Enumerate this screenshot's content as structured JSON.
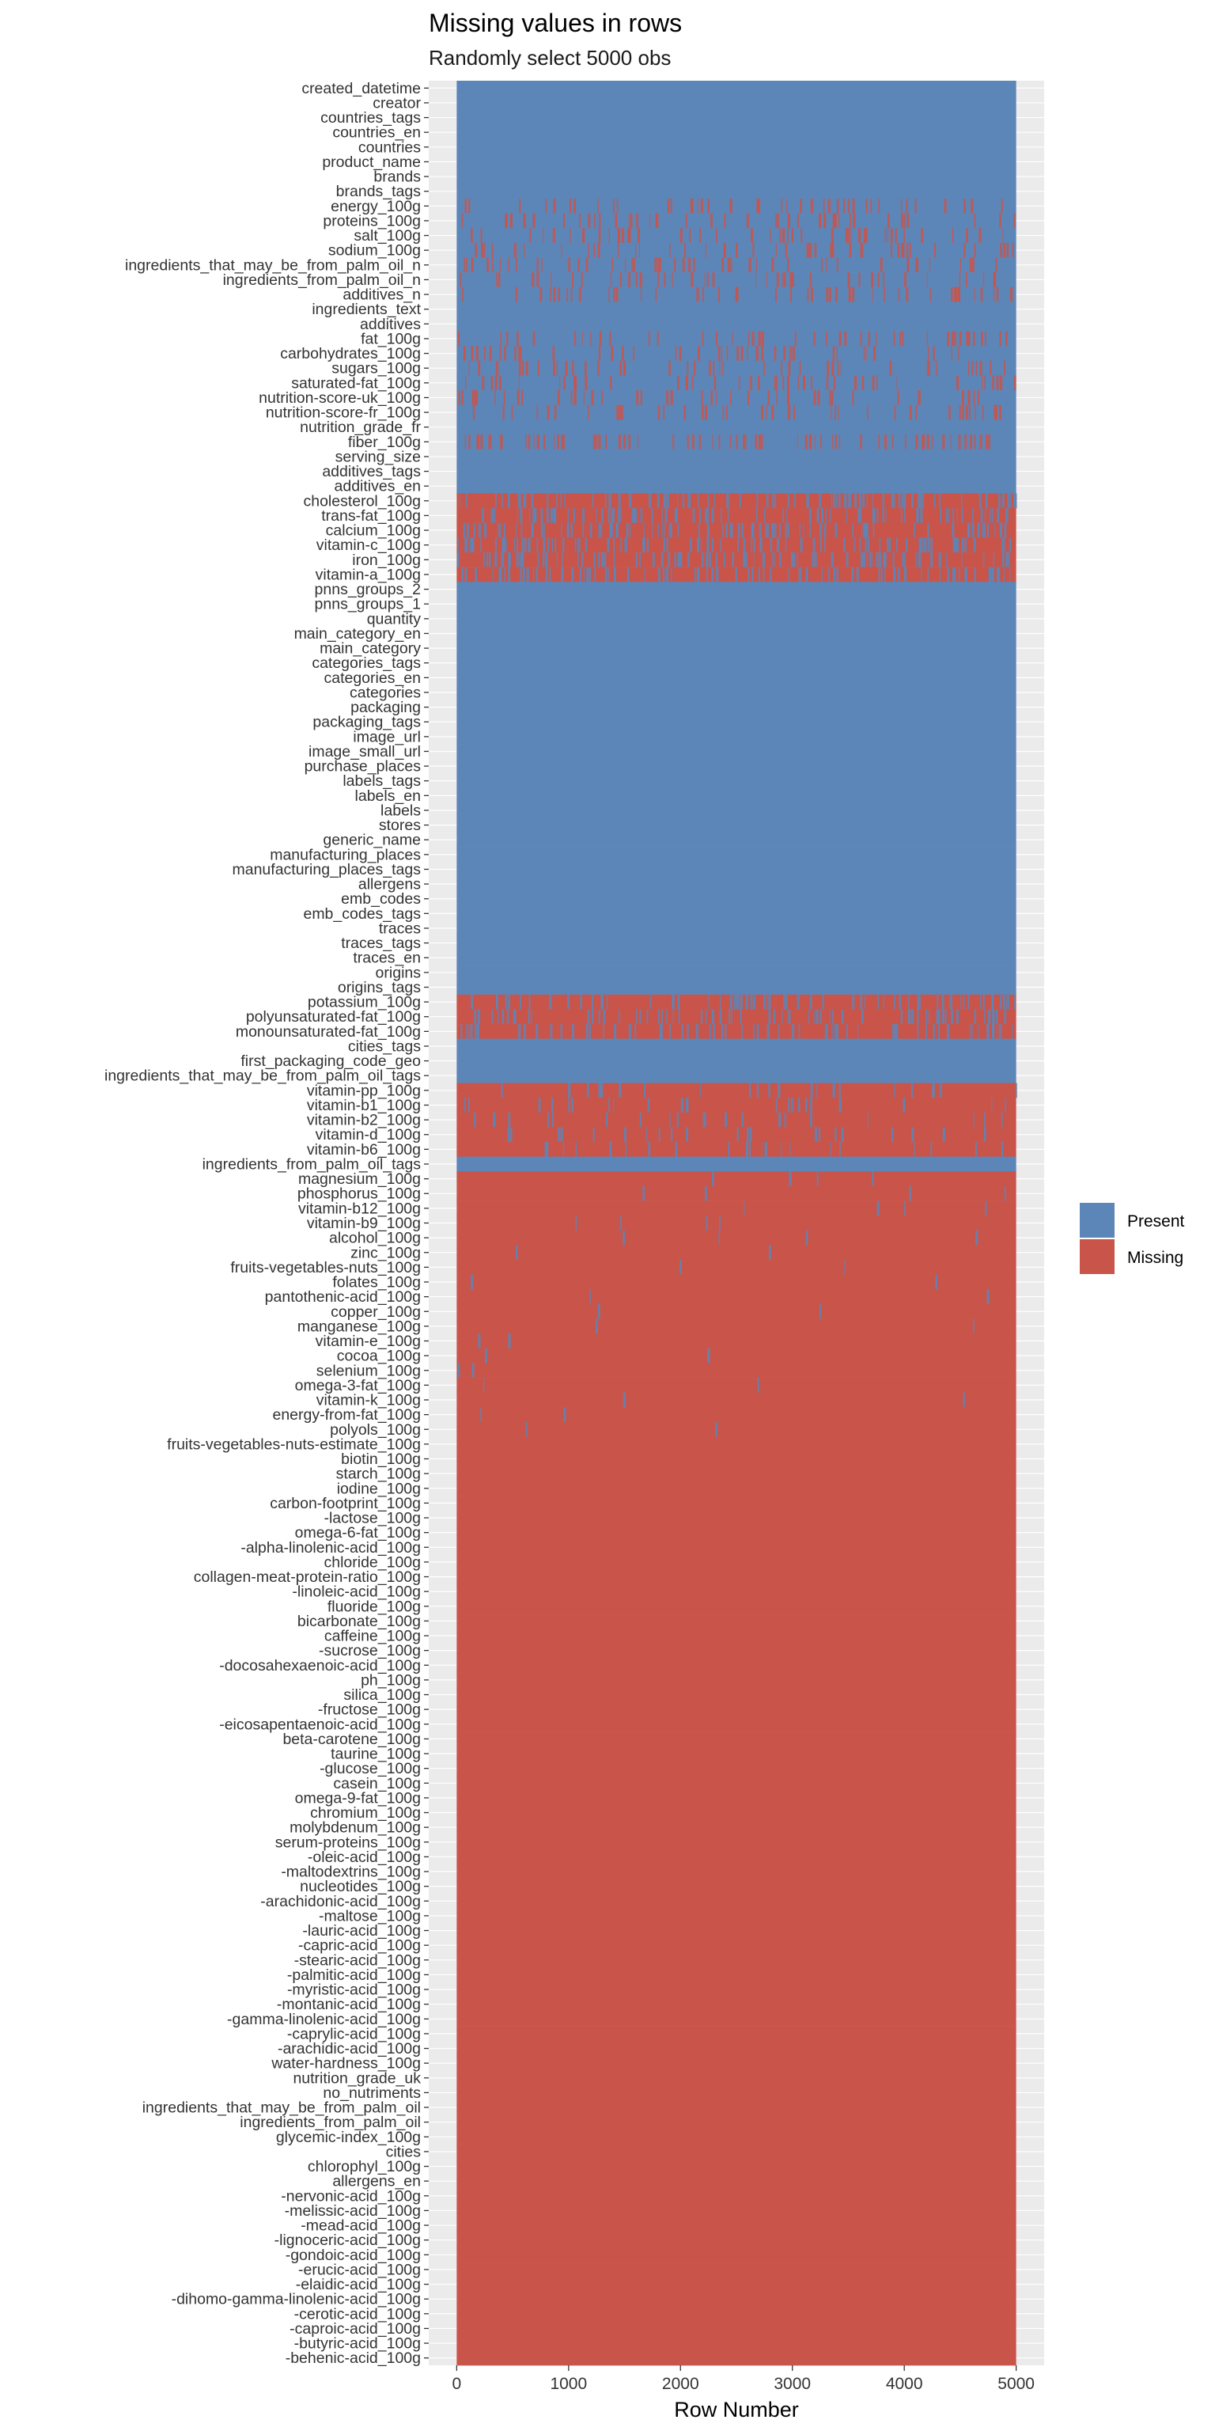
{
  "chart_data": {
    "type": "heatmap",
    "title": "Missing values in rows",
    "subtitle": "Randomly select 5000 obs",
    "xlabel": "Row Number",
    "ylabel": "",
    "xlim": [
      -250,
      5250
    ],
    "x_ticks": [
      0,
      1000,
      2000,
      3000,
      4000,
      5000
    ],
    "n_rows": 5000,
    "grid": true,
    "legend_position": "right",
    "legend": [
      {
        "name": "Present",
        "color": "#5C86B8"
      },
      {
        "name": "Missing",
        "color": "#C9544A"
      }
    ],
    "variables": [
      {
        "name": "created_datetime",
        "missing_rate": 0
      },
      {
        "name": "creator",
        "missing_rate": 0
      },
      {
        "name": "countries_tags",
        "missing_rate": 0
      },
      {
        "name": "countries_en",
        "missing_rate": 0
      },
      {
        "name": "countries",
        "missing_rate": 0
      },
      {
        "name": "product_name",
        "missing_rate": 0
      },
      {
        "name": "brands",
        "missing_rate": 0
      },
      {
        "name": "brands_tags",
        "missing_rate": 0
      },
      {
        "name": "energy_100g",
        "missing_rate": 0.2
      },
      {
        "name": "proteins_100g",
        "missing_rate": 0.2
      },
      {
        "name": "salt_100g",
        "missing_rate": 0.2
      },
      {
        "name": "sodium_100g",
        "missing_rate": 0.2
      },
      {
        "name": "ingredients_that_may_be_from_palm_oil_n",
        "missing_rate": 0.2
      },
      {
        "name": "ingredients_from_palm_oil_n",
        "missing_rate": 0.2
      },
      {
        "name": "additives_n",
        "missing_rate": 0.2
      },
      {
        "name": "ingredients_text",
        "missing_rate": 0
      },
      {
        "name": "additives",
        "missing_rate": 0
      },
      {
        "name": "fat_100g",
        "missing_rate": 0.2
      },
      {
        "name": "carbohydrates_100g",
        "missing_rate": 0.2
      },
      {
        "name": "sugars_100g",
        "missing_rate": 0.2
      },
      {
        "name": "saturated-fat_100g",
        "missing_rate": 0.2
      },
      {
        "name": "nutrition-score-uk_100g",
        "missing_rate": 0.2
      },
      {
        "name": "nutrition-score-fr_100g",
        "missing_rate": 0.2
      },
      {
        "name": "nutrition_grade_fr",
        "missing_rate": 0
      },
      {
        "name": "fiber_100g",
        "missing_rate": 0.35
      },
      {
        "name": "serving_size",
        "missing_rate": 0
      },
      {
        "name": "additives_tags",
        "missing_rate": 0
      },
      {
        "name": "additives_en",
        "missing_rate": 0
      },
      {
        "name": "cholesterol_100g",
        "missing_rate": 0.6
      },
      {
        "name": "trans-fat_100g",
        "missing_rate": 0.6
      },
      {
        "name": "calcium_100g",
        "missing_rate": 0.6
      },
      {
        "name": "vitamin-c_100g",
        "missing_rate": 0.6
      },
      {
        "name": "iron_100g",
        "missing_rate": 0.6
      },
      {
        "name": "vitamin-a_100g",
        "missing_rate": 0.6
      },
      {
        "name": "pnns_groups_2",
        "missing_rate": 0
      },
      {
        "name": "pnns_groups_1",
        "missing_rate": 0
      },
      {
        "name": "quantity",
        "missing_rate": 0
      },
      {
        "name": "main_category_en",
        "missing_rate": 0
      },
      {
        "name": "main_category",
        "missing_rate": 0
      },
      {
        "name": "categories_tags",
        "missing_rate": 0
      },
      {
        "name": "categories_en",
        "missing_rate": 0
      },
      {
        "name": "categories",
        "missing_rate": 0
      },
      {
        "name": "packaging",
        "missing_rate": 0
      },
      {
        "name": "packaging_tags",
        "missing_rate": 0
      },
      {
        "name": "image_url",
        "missing_rate": 0
      },
      {
        "name": "image_small_url",
        "missing_rate": 0
      },
      {
        "name": "purchase_places",
        "missing_rate": 0
      },
      {
        "name": "labels_tags",
        "missing_rate": 0
      },
      {
        "name": "labels_en",
        "missing_rate": 0
      },
      {
        "name": "labels",
        "missing_rate": 0
      },
      {
        "name": "stores",
        "missing_rate": 0
      },
      {
        "name": "generic_name",
        "missing_rate": 0
      },
      {
        "name": "manufacturing_places",
        "missing_rate": 0
      },
      {
        "name": "manufacturing_places_tags",
        "missing_rate": 0
      },
      {
        "name": "allergens",
        "missing_rate": 0
      },
      {
        "name": "emb_codes",
        "missing_rate": 0
      },
      {
        "name": "emb_codes_tags",
        "missing_rate": 0
      },
      {
        "name": "traces",
        "missing_rate": 0
      },
      {
        "name": "traces_tags",
        "missing_rate": 0
      },
      {
        "name": "traces_en",
        "missing_rate": 0
      },
      {
        "name": "origins",
        "missing_rate": 0
      },
      {
        "name": "origins_tags",
        "missing_rate": 0
      },
      {
        "name": "potassium_100g",
        "missing_rate": 0.7
      },
      {
        "name": "polyunsaturated-fat_100g",
        "missing_rate": 0.7
      },
      {
        "name": "monounsaturated-fat_100g",
        "missing_rate": 0.7
      },
      {
        "name": "cities_tags",
        "missing_rate": 0
      },
      {
        "name": "first_packaging_code_geo",
        "missing_rate": 0
      },
      {
        "name": "ingredients_that_may_be_from_palm_oil_tags",
        "missing_rate": 0
      },
      {
        "name": "vitamin-pp_100g",
        "missing_rate": 0.9
      },
      {
        "name": "vitamin-b1_100g",
        "missing_rate": 0.9
      },
      {
        "name": "vitamin-b2_100g",
        "missing_rate": 0.9
      },
      {
        "name": "vitamin-d_100g",
        "missing_rate": 0.9
      },
      {
        "name": "vitamin-b6_100g",
        "missing_rate": 0.9
      },
      {
        "name": "ingredients_from_palm_oil_tags",
        "missing_rate": 0
      },
      {
        "name": "magnesium_100g",
        "missing_rate": 0.98
      },
      {
        "name": "phosphorus_100g",
        "missing_rate": 0.98
      },
      {
        "name": "vitamin-b12_100g",
        "missing_rate": 0.98
      },
      {
        "name": "vitamin-b9_100g",
        "missing_rate": 0.98
      },
      {
        "name": "alcohol_100g",
        "missing_rate": 0.98
      },
      {
        "name": "zinc_100g",
        "missing_rate": 0.99
      },
      {
        "name": "fruits-vegetables-nuts_100g",
        "missing_rate": 0.99
      },
      {
        "name": "folates_100g",
        "missing_rate": 0.99
      },
      {
        "name": "pantothenic-acid_100g",
        "missing_rate": 0.99
      },
      {
        "name": "copper_100g",
        "missing_rate": 0.99
      },
      {
        "name": "manganese_100g",
        "missing_rate": 0.99
      },
      {
        "name": "vitamin-e_100g",
        "missing_rate": 0.99
      },
      {
        "name": "cocoa_100g",
        "missing_rate": 0.99
      },
      {
        "name": "selenium_100g",
        "missing_rate": 0.99
      },
      {
        "name": "omega-3-fat_100g",
        "missing_rate": 0.99
      },
      {
        "name": "vitamin-k_100g",
        "missing_rate": 0.99
      },
      {
        "name": "energy-from-fat_100g",
        "missing_rate": 0.99
      },
      {
        "name": "polyols_100g",
        "missing_rate": 0.99
      },
      {
        "name": "fruits-vegetables-nuts-estimate_100g",
        "missing_rate": 1
      },
      {
        "name": "biotin_100g",
        "missing_rate": 1
      },
      {
        "name": "starch_100g",
        "missing_rate": 1
      },
      {
        "name": "iodine_100g",
        "missing_rate": 1
      },
      {
        "name": "carbon-footprint_100g",
        "missing_rate": 1
      },
      {
        "name": "-lactose_100g",
        "missing_rate": 1
      },
      {
        "name": "omega-6-fat_100g",
        "missing_rate": 1
      },
      {
        "name": "-alpha-linolenic-acid_100g",
        "missing_rate": 1
      },
      {
        "name": "chloride_100g",
        "missing_rate": 1
      },
      {
        "name": "collagen-meat-protein-ratio_100g",
        "missing_rate": 1
      },
      {
        "name": "-linoleic-acid_100g",
        "missing_rate": 1
      },
      {
        "name": "fluoride_100g",
        "missing_rate": 1
      },
      {
        "name": "bicarbonate_100g",
        "missing_rate": 1
      },
      {
        "name": "caffeine_100g",
        "missing_rate": 1
      },
      {
        "name": "-sucrose_100g",
        "missing_rate": 1
      },
      {
        "name": "-docosahexaenoic-acid_100g",
        "missing_rate": 1
      },
      {
        "name": "ph_100g",
        "missing_rate": 1
      },
      {
        "name": "silica_100g",
        "missing_rate": 1
      },
      {
        "name": "-fructose_100g",
        "missing_rate": 1
      },
      {
        "name": "-eicosapentaenoic-acid_100g",
        "missing_rate": 1
      },
      {
        "name": "beta-carotene_100g",
        "missing_rate": 1
      },
      {
        "name": "taurine_100g",
        "missing_rate": 1
      },
      {
        "name": "-glucose_100g",
        "missing_rate": 1
      },
      {
        "name": "casein_100g",
        "missing_rate": 1
      },
      {
        "name": "omega-9-fat_100g",
        "missing_rate": 1
      },
      {
        "name": "chromium_100g",
        "missing_rate": 1
      },
      {
        "name": "molybdenum_100g",
        "missing_rate": 1
      },
      {
        "name": "serum-proteins_100g",
        "missing_rate": 1
      },
      {
        "name": "-oleic-acid_100g",
        "missing_rate": 1
      },
      {
        "name": "-maltodextrins_100g",
        "missing_rate": 1
      },
      {
        "name": "nucleotides_100g",
        "missing_rate": 1
      },
      {
        "name": "-arachidonic-acid_100g",
        "missing_rate": 1
      },
      {
        "name": "-maltose_100g",
        "missing_rate": 1
      },
      {
        "name": "-lauric-acid_100g",
        "missing_rate": 1
      },
      {
        "name": "-capric-acid_100g",
        "missing_rate": 1
      },
      {
        "name": "-stearic-acid_100g",
        "missing_rate": 1
      },
      {
        "name": "-palmitic-acid_100g",
        "missing_rate": 1
      },
      {
        "name": "-myristic-acid_100g",
        "missing_rate": 1
      },
      {
        "name": "-montanic-acid_100g",
        "missing_rate": 1
      },
      {
        "name": "-gamma-linolenic-acid_100g",
        "missing_rate": 1
      },
      {
        "name": "-caprylic-acid_100g",
        "missing_rate": 1
      },
      {
        "name": "-arachidic-acid_100g",
        "missing_rate": 1
      },
      {
        "name": "water-hardness_100g",
        "missing_rate": 1
      },
      {
        "name": "nutrition_grade_uk",
        "missing_rate": 1
      },
      {
        "name": "no_nutriments",
        "missing_rate": 1
      },
      {
        "name": "ingredients_that_may_be_from_palm_oil",
        "missing_rate": 1
      },
      {
        "name": "ingredients_from_palm_oil",
        "missing_rate": 1
      },
      {
        "name": "glycemic-index_100g",
        "missing_rate": 1
      },
      {
        "name": "cities",
        "missing_rate": 1
      },
      {
        "name": "chlorophyl_100g",
        "missing_rate": 1
      },
      {
        "name": "allergens_en",
        "missing_rate": 1
      },
      {
        "name": "-nervonic-acid_100g",
        "missing_rate": 1
      },
      {
        "name": "-melissic-acid_100g",
        "missing_rate": 1
      },
      {
        "name": "-mead-acid_100g",
        "missing_rate": 1
      },
      {
        "name": "-lignoceric-acid_100g",
        "missing_rate": 1
      },
      {
        "name": "-gondoic-acid_100g",
        "missing_rate": 1
      },
      {
        "name": "-erucic-acid_100g",
        "missing_rate": 1
      },
      {
        "name": "-elaidic-acid_100g",
        "missing_rate": 1
      },
      {
        "name": "-dihomo-gamma-linolenic-acid_100g",
        "missing_rate": 1
      },
      {
        "name": "-cerotic-acid_100g",
        "missing_rate": 1
      },
      {
        "name": "-caproic-acid_100g",
        "missing_rate": 1
      },
      {
        "name": "-butyric-acid_100g",
        "missing_rate": 1
      },
      {
        "name": "-behenic-acid_100g",
        "missing_rate": 1
      }
    ]
  }
}
